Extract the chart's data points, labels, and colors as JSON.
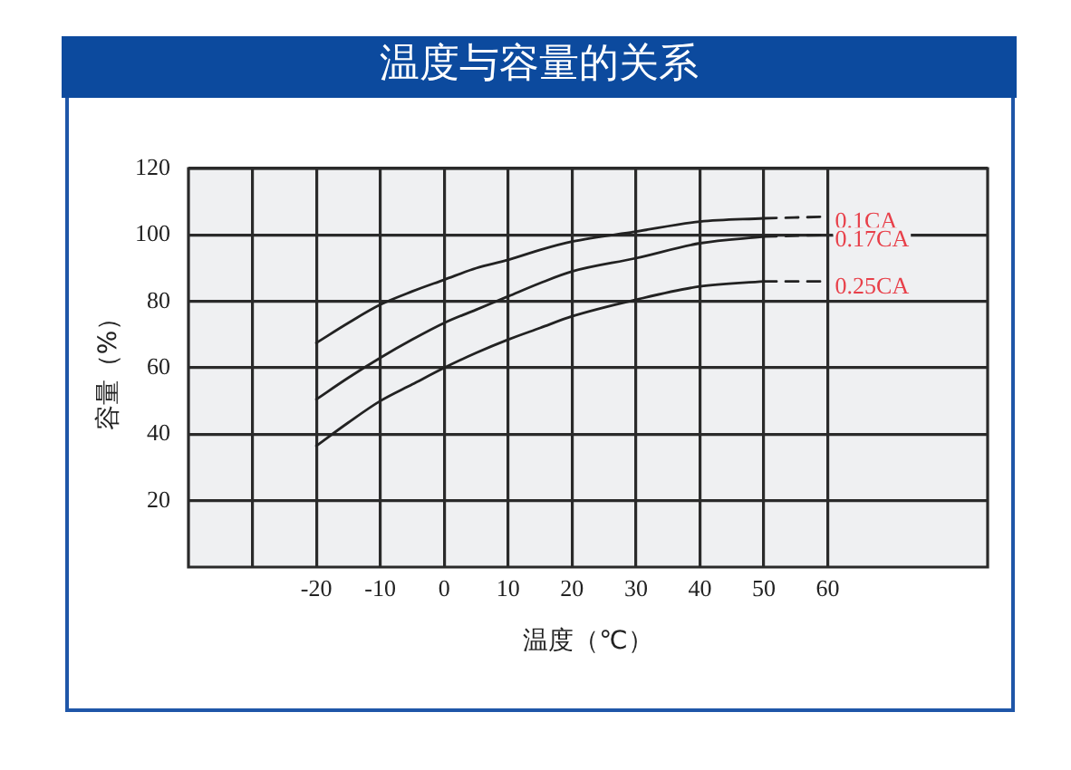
{
  "chart_data": {
    "type": "line",
    "title": "温度与容量的关系",
    "xlabel": "温度（℃）",
    "ylabel": "容量（%）",
    "xlim": [
      -40,
      85
    ],
    "xticks": [
      {
        "value": -30,
        "label": null
      },
      -20,
      -10,
      0,
      10,
      20,
      30,
      40,
      50,
      60
    ],
    "ylim": [
      0,
      120
    ],
    "yticks": [
      20,
      40,
      60,
      80,
      100,
      120
    ],
    "grid": true,
    "series": [
      {
        "name": "0.1CA",
        "color": "#222222",
        "x": [
          -20,
          -15,
          -10,
          -5,
          0,
          5,
          10,
          15,
          20,
          30,
          40,
          50
        ],
        "values": [
          67.5,
          73.5,
          79,
          83,
          86.5,
          90,
          92.5,
          95.5,
          98,
          101,
          104,
          105
        ]
      },
      {
        "color": "#222222",
        "x": [
          50,
          60
        ],
        "values": [
          105,
          105.5
        ],
        "line_style": "dashed"
      },
      {
        "name": "0.17CA",
        "color": "#222222",
        "x": [
          -20,
          -15,
          -10,
          -5,
          0,
          5,
          10,
          15,
          20,
          30,
          40,
          50
        ],
        "values": [
          50.5,
          57,
          63,
          68.5,
          73.5,
          77.5,
          81.5,
          85.5,
          89,
          93,
          97.5,
          99.5
        ]
      },
      {
        "color": "#222222",
        "x": [
          50,
          60
        ],
        "values": [
          99.5,
          100
        ],
        "line_style": "dashed"
      },
      {
        "name": "0.25CA",
        "color": "#222222",
        "x": [
          -20,
          -15,
          -10,
          -5,
          0,
          5,
          10,
          15,
          20,
          30,
          40,
          50
        ],
        "values": [
          36.5,
          43.5,
          50,
          55,
          60,
          64.5,
          68.5,
          72,
          75.5,
          80.5,
          84.5,
          86
        ]
      },
      {
        "color": "#222222",
        "x": [
          50,
          60
        ],
        "values": [
          86,
          86
        ],
        "line_style": "dashed"
      }
    ]
  }
}
